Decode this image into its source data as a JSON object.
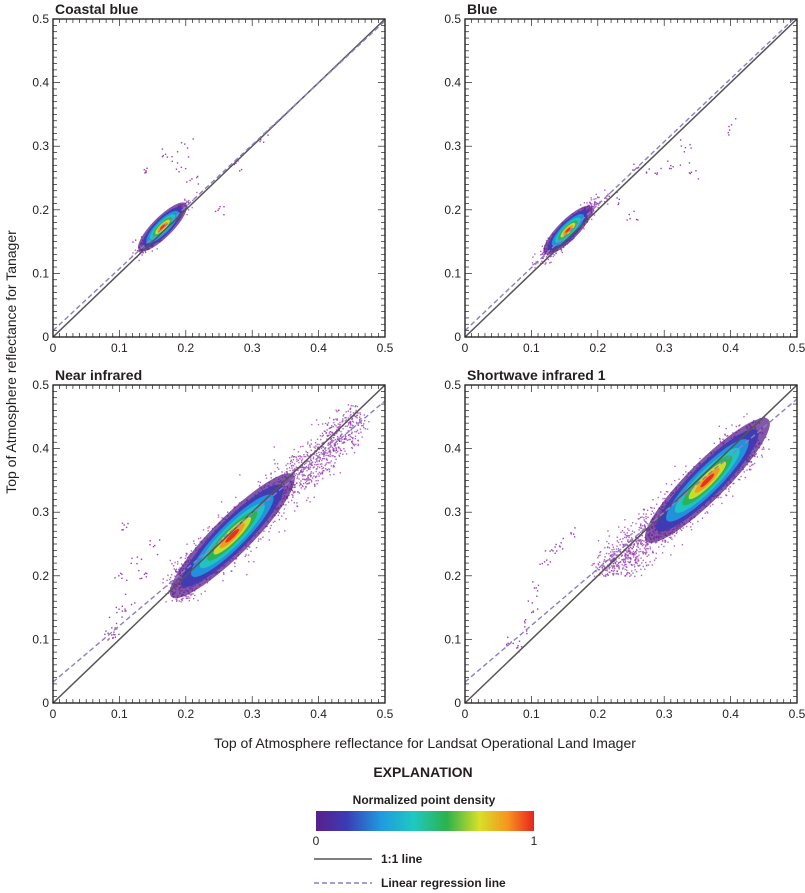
{
  "figure": {
    "ylabel": "Top of Atmosphere reflectance for Tanager",
    "xlabel": "Top of Atmosphere reflectance for Landsat Operational Land Imager"
  },
  "explanation": {
    "title": "EXPLANATION",
    "density_title": "Normalized point density",
    "density_min": "0",
    "density_max": "1",
    "density_colors": [
      "#5a1f8c",
      "#3b3bb5",
      "#1f9be0",
      "#1fc9c0",
      "#2bb24c",
      "#d8e028",
      "#f7941d",
      "#e8231f"
    ],
    "one_to_one_label": "1:1 line",
    "regression_label": "Linear regression line",
    "one_to_one_color": "#555555",
    "regression_color": "#8c7fc2",
    "scatter_color": "#9b3fb5"
  },
  "chart_data": [
    {
      "type": "scatter",
      "title": "Coastal blue",
      "xlim": [
        0,
        0.5
      ],
      "ylim": [
        0,
        0.5
      ],
      "xticks": [
        "0",
        "0.1",
        "0.2",
        "0.3",
        "0.4",
        "0.5"
      ],
      "yticks": [
        "0",
        "0.1",
        "0.2",
        "0.3",
        "0.4",
        "0.5"
      ],
      "one_to_one": [
        [
          0,
          0
        ],
        [
          0.5,
          0.5
        ]
      ],
      "regression": [
        [
          0,
          0.01
        ],
        [
          0.5,
          0.497
        ]
      ],
      "density_center": [
        0.165,
        0.173
      ],
      "cluster_extent": {
        "x": [
          0.13,
          0.23
        ],
        "y": [
          0.14,
          0.24
        ]
      },
      "sparse_points": [
        [
          0.14,
          0.26
        ],
        [
          0.17,
          0.29
        ],
        [
          0.21,
          0.25
        ],
        [
          0.2,
          0.3
        ],
        [
          0.27,
          0.27
        ],
        [
          0.13,
          0.15
        ],
        [
          0.25,
          0.2
        ],
        [
          0.19,
          0.27
        ],
        [
          0.32,
          0.32
        ]
      ]
    },
    {
      "type": "scatter",
      "title": "Blue",
      "xlim": [
        0,
        0.5
      ],
      "ylim": [
        0,
        0.5
      ],
      "xticks": [
        "0",
        "0.1",
        "0.2",
        "0.3",
        "0.4",
        "0.5"
      ],
      "yticks": [
        "0",
        "0.1",
        "0.2",
        "0.3",
        "0.4",
        "0.5"
      ],
      "one_to_one": [
        [
          0,
          0
        ],
        [
          0.5,
          0.5
        ]
      ],
      "regression": [
        [
          0,
          0.01
        ],
        [
          0.5,
          0.505
        ]
      ],
      "density_center": [
        0.155,
        0.168
      ],
      "cluster_extent": {
        "x": [
          0.12,
          0.25
        ],
        "y": [
          0.13,
          0.26
        ]
      },
      "sparse_points": [
        [
          0.26,
          0.27
        ],
        [
          0.28,
          0.26
        ],
        [
          0.31,
          0.27
        ],
        [
          0.34,
          0.26
        ],
        [
          0.23,
          0.22
        ],
        [
          0.4,
          0.335
        ],
        [
          0.33,
          0.3
        ],
        [
          0.25,
          0.19
        ]
      ]
    },
    {
      "type": "scatter",
      "title": "Near infrared",
      "xlim": [
        0,
        0.5
      ],
      "ylim": [
        0,
        0.5
      ],
      "xticks": [
        "0",
        "0.1",
        "0.2",
        "0.3",
        "0.4",
        "0.5"
      ],
      "yticks": [
        "0",
        "0.1",
        "0.2",
        "0.3",
        "0.4",
        "0.5"
      ],
      "one_to_one": [
        [
          0,
          0
        ],
        [
          0.5,
          0.5
        ]
      ],
      "regression": [
        [
          0,
          0.033
        ],
        [
          0.5,
          0.475
        ]
      ],
      "density_center": [
        0.27,
        0.263
      ],
      "cluster_extent": {
        "x": [
          0.18,
          0.46
        ],
        "y": [
          0.18,
          0.45
        ]
      },
      "sparse_points": [
        [
          0.08,
          0.11
        ],
        [
          0.09,
          0.12
        ],
        [
          0.1,
          0.14
        ],
        [
          0.11,
          0.16
        ],
        [
          0.12,
          0.22
        ],
        [
          0.1,
          0.2
        ],
        [
          0.15,
          0.25
        ],
        [
          0.11,
          0.28
        ],
        [
          0.09,
          0.1
        ],
        [
          0.13,
          0.2
        ]
      ]
    },
    {
      "type": "scatter",
      "title": "Shortwave infrared 1",
      "xlim": [
        0,
        0.5
      ],
      "ylim": [
        0,
        0.5
      ],
      "xticks": [
        "0",
        "0.1",
        "0.2",
        "0.3",
        "0.4",
        "0.5"
      ],
      "yticks": [
        "0",
        "0.1",
        "0.2",
        "0.3",
        "0.4",
        "0.5"
      ],
      "one_to_one": [
        [
          0,
          0
        ],
        [
          0.5,
          0.5
        ]
      ],
      "regression": [
        [
          0,
          0.033
        ],
        [
          0.5,
          0.478
        ]
      ],
      "density_center": [
        0.365,
        0.35
      ],
      "cluster_extent": {
        "x": [
          0.2,
          0.44
        ],
        "y": [
          0.22,
          0.44
        ]
      },
      "sparse_points": [
        [
          0.07,
          0.1
        ],
        [
          0.09,
          0.12
        ],
        [
          0.1,
          0.15
        ],
        [
          0.12,
          0.22
        ],
        [
          0.14,
          0.25
        ],
        [
          0.08,
          0.09
        ],
        [
          0.11,
          0.18
        ],
        [
          0.16,
          0.27
        ],
        [
          0.13,
          0.24
        ]
      ]
    }
  ]
}
